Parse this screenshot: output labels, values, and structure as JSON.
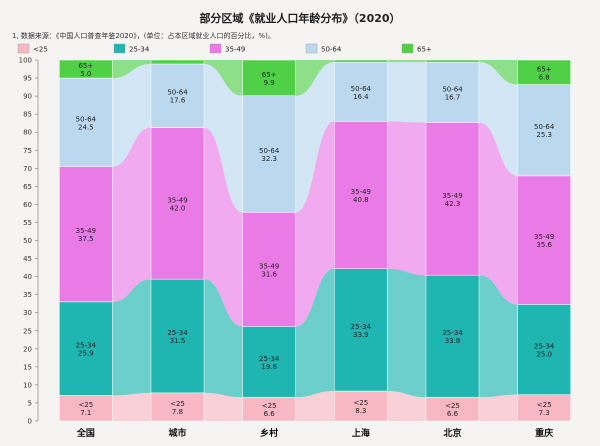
{
  "chart_data": {
    "type": "bar",
    "stacked": true,
    "title": "部分区域《就业人口年龄分布》（2020）",
    "note": "1, 数据来源：《中国人口普查年鉴2020》，(单位：占本区域就业人口的百分比，%)。",
    "categories": [
      "全国",
      "城市",
      "乡村",
      "上海",
      "北京",
      "重庆"
    ],
    "series": [
      {
        "name": "<25",
        "color": "#f7b7c3",
        "values": [
          7.1,
          7.8,
          6.6,
          8.3,
          6.6,
          7.3
        ]
      },
      {
        "name": "25-34",
        "color": "#1fb5b0",
        "values": [
          25.9,
          31.5,
          19.6,
          33.9,
          33.8,
          25.0
        ]
      },
      {
        "name": "35-49",
        "color": "#ea7ae6",
        "values": [
          37.5,
          42.0,
          31.6,
          40.8,
          42.3,
          35.6
        ]
      },
      {
        "name": "50-64",
        "color": "#bcd8ef",
        "values": [
          24.5,
          17.6,
          32.3,
          16.4,
          16.7,
          25.3
        ]
      },
      {
        "name": "65+",
        "color": "#4fd046",
        "values": [
          5.0,
          1.1,
          9.9,
          0.6,
          0.6,
          6.8
        ]
      }
    ],
    "value_labels": {
      "<25": [
        "7.1",
        "7.8",
        "6.6",
        "8.3",
        "6.6",
        "7.3"
      ],
      "25-34": [
        "25.9",
        "31.5",
        "19.6",
        "33.9",
        "33.8",
        "25.0"
      ],
      "35-49": [
        "37.5",
        "42.0",
        "31.6",
        "40.8",
        "42.3",
        "35.6"
      ],
      "50-64": [
        "24.5",
        "17.6",
        "32.3",
        "16.4",
        "16.7",
        "25.3"
      ],
      "65+": [
        "5.0",
        "",
        "9.9",
        "",
        "",
        "6.8"
      ]
    },
    "ylim": [
      0,
      100
    ],
    "yticks": [
      0,
      5,
      10,
      15,
      20,
      25,
      30,
      35,
      40,
      45,
      50,
      55,
      60,
      65,
      70,
      75,
      80,
      85,
      90,
      95,
      100
    ],
    "grid": false,
    "legend": "top"
  }
}
